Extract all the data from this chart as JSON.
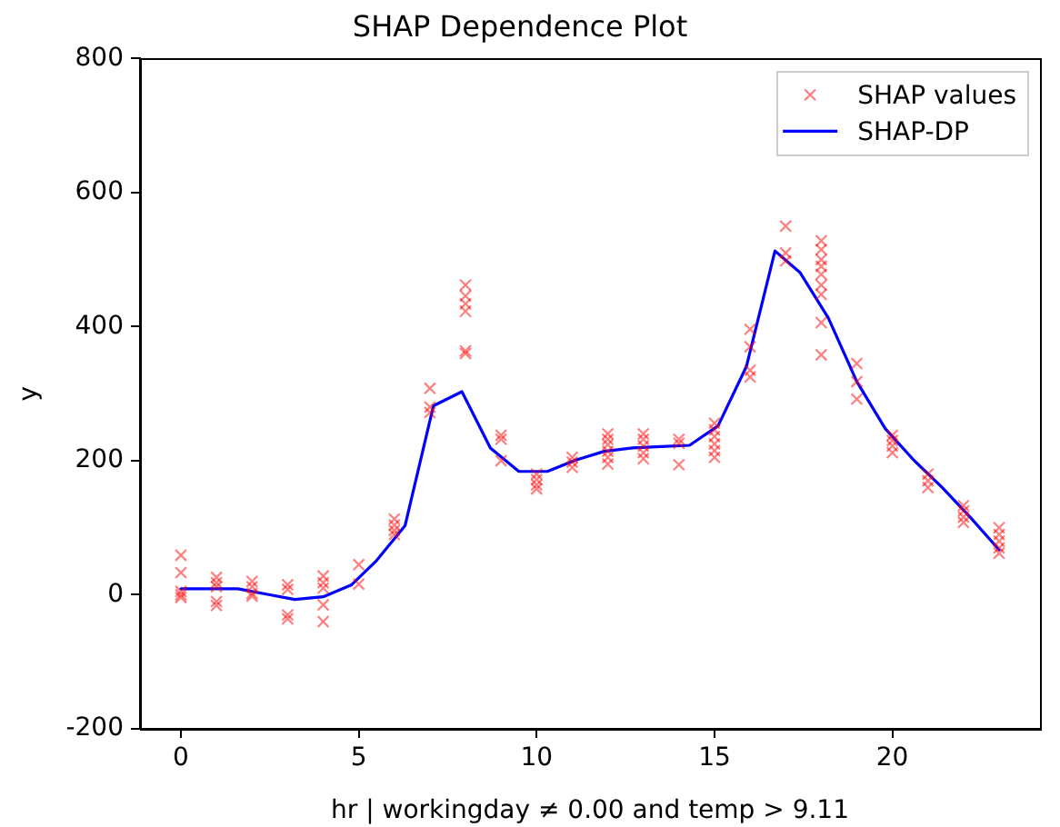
{
  "chart_data": {
    "type": "scatter",
    "title": "SHAP Dependence Plot",
    "xlabel": "hr | workingday ≠ 0.00 and temp > 9.11",
    "ylabel": "y",
    "xlim": [
      -1.15,
      24.15
    ],
    "xticks": [
      0,
      5,
      10,
      15,
      20
    ],
    "ylim": [
      -200,
      800
    ],
    "yticks": [
      -200,
      0,
      200,
      400,
      600,
      800
    ],
    "grid": false,
    "legend": "top right",
    "series": [
      {
        "name": "SHAP values",
        "type": "scatter",
        "marker": "cross",
        "color": "#ff0000",
        "x": [
          0,
          0,
          0,
          0,
          0,
          1,
          1,
          1,
          1,
          1,
          2,
          2,
          2,
          2,
          3,
          3,
          3,
          3,
          4,
          4,
          4,
          4,
          4,
          5,
          5,
          6,
          6,
          6,
          6,
          7,
          7,
          7,
          8,
          8,
          8,
          8,
          8,
          8,
          9,
          9,
          9,
          10,
          10,
          10,
          10,
          11,
          11,
          11,
          12,
          12,
          12,
          12,
          12,
          12,
          13,
          13,
          13,
          13,
          13,
          14,
          14,
          14,
          15,
          15,
          15,
          15,
          15,
          15,
          16,
          16,
          16,
          16,
          17,
          17,
          17,
          18,
          18,
          18,
          18,
          18,
          18,
          18,
          18,
          18,
          19,
          19,
          19,
          20,
          20,
          20,
          20,
          21,
          21,
          21,
          22,
          22,
          22,
          22,
          23,
          23,
          23,
          23,
          23
        ],
        "values": [
          59,
          33,
          5,
          0,
          -4,
          26,
          18,
          12,
          -10,
          -16,
          20,
          12,
          2,
          -2,
          15,
          8,
          -30,
          -36,
          28,
          18,
          10,
          -15,
          -40,
          45,
          16,
          113,
          104,
          96,
          90,
          308,
          280,
          272,
          462,
          446,
          434,
          423,
          364,
          360,
          238,
          232,
          200,
          180,
          172,
          164,
          158,
          205,
          198,
          190,
          240,
          232,
          224,
          214,
          205,
          195,
          240,
          232,
          222,
          212,
          203,
          232,
          226,
          194,
          256,
          246,
          236,
          225,
          215,
          205,
          396,
          370,
          335,
          325,
          550,
          510,
          498,
          528,
          515,
          500,
          490,
          478,
          462,
          448,
          406,
          358,
          345,
          318,
          292,
          238,
          230,
          222,
          212,
          180,
          170,
          160,
          133,
          125,
          116,
          108,
          100,
          90,
          80,
          70,
          62
        ]
      },
      {
        "name": "SHAP-DP",
        "type": "line",
        "marker": "none",
        "line_style": "solid",
        "color": "#0000ff",
        "x": [
          0,
          0.8,
          1.6,
          2.4,
          3.2,
          4.0,
          4.8,
          5.5,
          6.3,
          7.1,
          7.9,
          8.7,
          9.5,
          10.3,
          11.1,
          11.9,
          12.7,
          13.5,
          14.3,
          15.1,
          15.9,
          16.7,
          17.4,
          18.2,
          19.0,
          19.8,
          20.6,
          21.4,
          22.2,
          23
        ],
        "values": [
          9,
          9,
          9,
          1,
          -7,
          -3,
          15,
          51,
          103,
          282,
          303,
          219,
          184,
          184,
          201,
          214,
          219,
          221,
          223,
          252,
          341,
          513,
          481,
          413,
          318,
          248,
          201,
          160,
          115,
          67
        ]
      }
    ]
  }
}
